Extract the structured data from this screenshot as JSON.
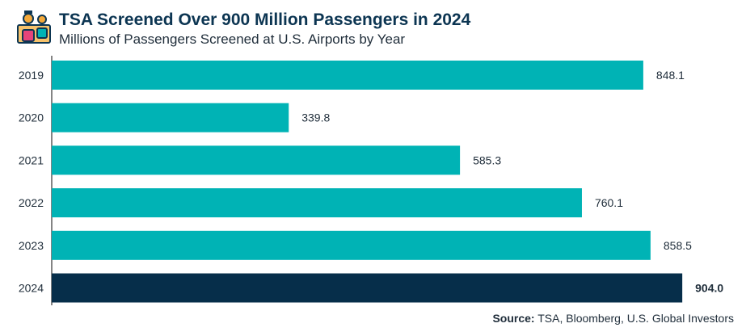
{
  "header": {
    "title": "TSA Screened Over 900 Million Passengers in 2024",
    "subtitle": "Millions of Passengers Screened at U.S. Airports by Year"
  },
  "source": {
    "label": "Source:",
    "text": "TSA, Bloomberg, U.S. Global Investors"
  },
  "colors": {
    "bar": "#00b3b5",
    "highlight_bar": "#062e4a",
    "axis": "#333333",
    "logo_primary": "#f4a93a",
    "logo_accent": "#e5447a"
  },
  "logo_icon": "airport-security-icon",
  "chart_data": {
    "type": "bar",
    "orientation": "horizontal",
    "categories": [
      "2019",
      "2020",
      "2021",
      "2022",
      "2023",
      "2024"
    ],
    "values": [
      848.1,
      339.8,
      585.3,
      760.1,
      858.5,
      904.0
    ],
    "value_labels": [
      "848.1",
      "339.8",
      "585.3",
      "760.1",
      "858.5",
      "904.0"
    ],
    "highlight_category": "2024",
    "xlim": [
      0,
      1000
    ],
    "grid": false,
    "legend": "none"
  }
}
